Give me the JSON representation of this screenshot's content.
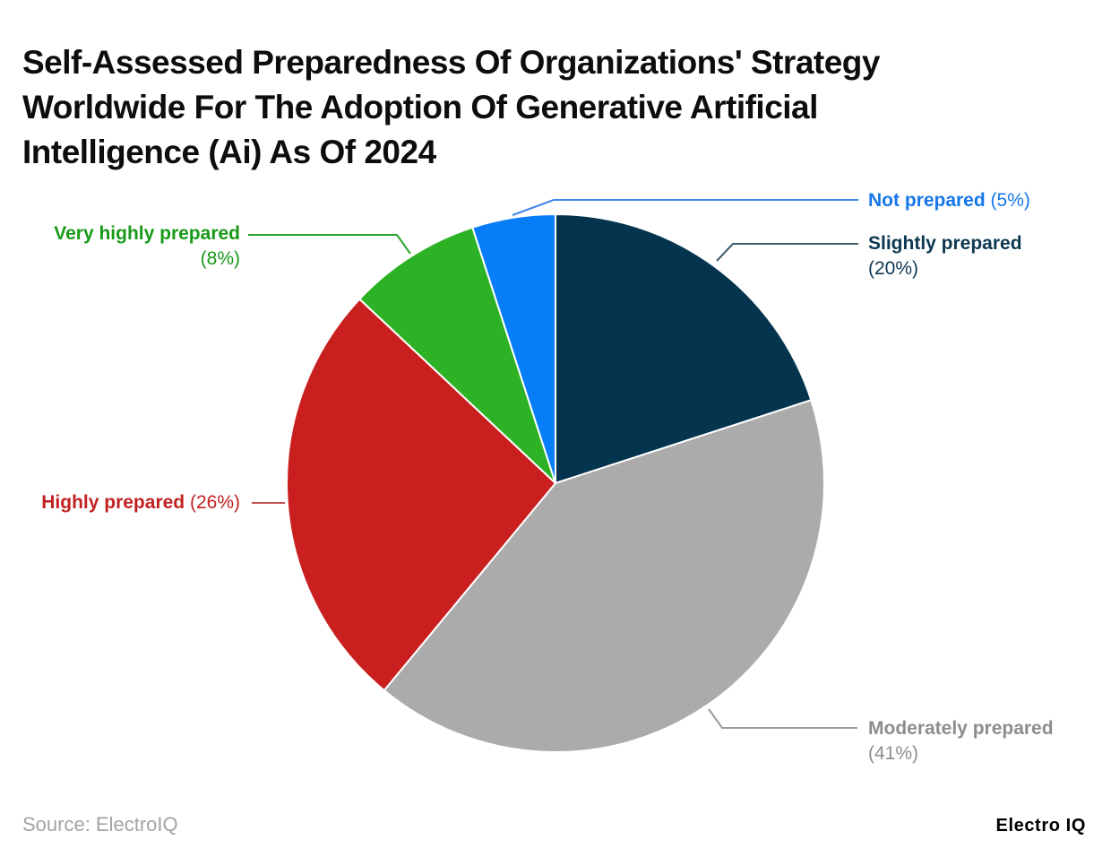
{
  "header": {
    "title_lines": [
      "Self-Assessed Preparedness Of Organizations' Strategy",
      "Worldwide For The Adoption Of Generative Artificial",
      "Intelligence (Ai) As Of 2024"
    ]
  },
  "chart_data": {
    "type": "pie",
    "title": "Self-Assessed Preparedness Of Organizations' Strategy Worldwide For The Adoption Of Generative Artificial Intelligence (Ai) As Of 2024",
    "start_angle": "12 o'clock",
    "direction": "clockwise",
    "legend_position": "callout-labels",
    "slices": [
      {
        "label": "Slightly prepared",
        "value": 20,
        "pct_text": "(20%)",
        "color": "#04344e",
        "label_color": "#0d3850",
        "leader_color": "#3d5c6f"
      },
      {
        "label": "Moderately prepared",
        "value": 41,
        "pct_text": "(41%)",
        "color": "#ababab",
        "label_color": "#8d8d8d",
        "leader_color": "#9a9a9a"
      },
      {
        "label": "Highly prepared",
        "value": 26,
        "pct_text": "(26%)",
        "color": "#c91f1f",
        "label_color": "#c22121",
        "leader_color": "#c4504f"
      },
      {
        "label": "Very highly prepared",
        "value": 8,
        "pct_text": "(8%)",
        "color": "#2db226",
        "label_color": "#189a18",
        "leader_color": "#2aa32a"
      },
      {
        "label": "Not prepared",
        "value": 5,
        "pct_text": "(5%)",
        "color": "#077ef8",
        "label_color": "#1577e8",
        "leader_color": "#4285e8"
      }
    ]
  },
  "footer": {
    "source": "Source: ElectroIQ",
    "brand": "Electro IQ"
  }
}
